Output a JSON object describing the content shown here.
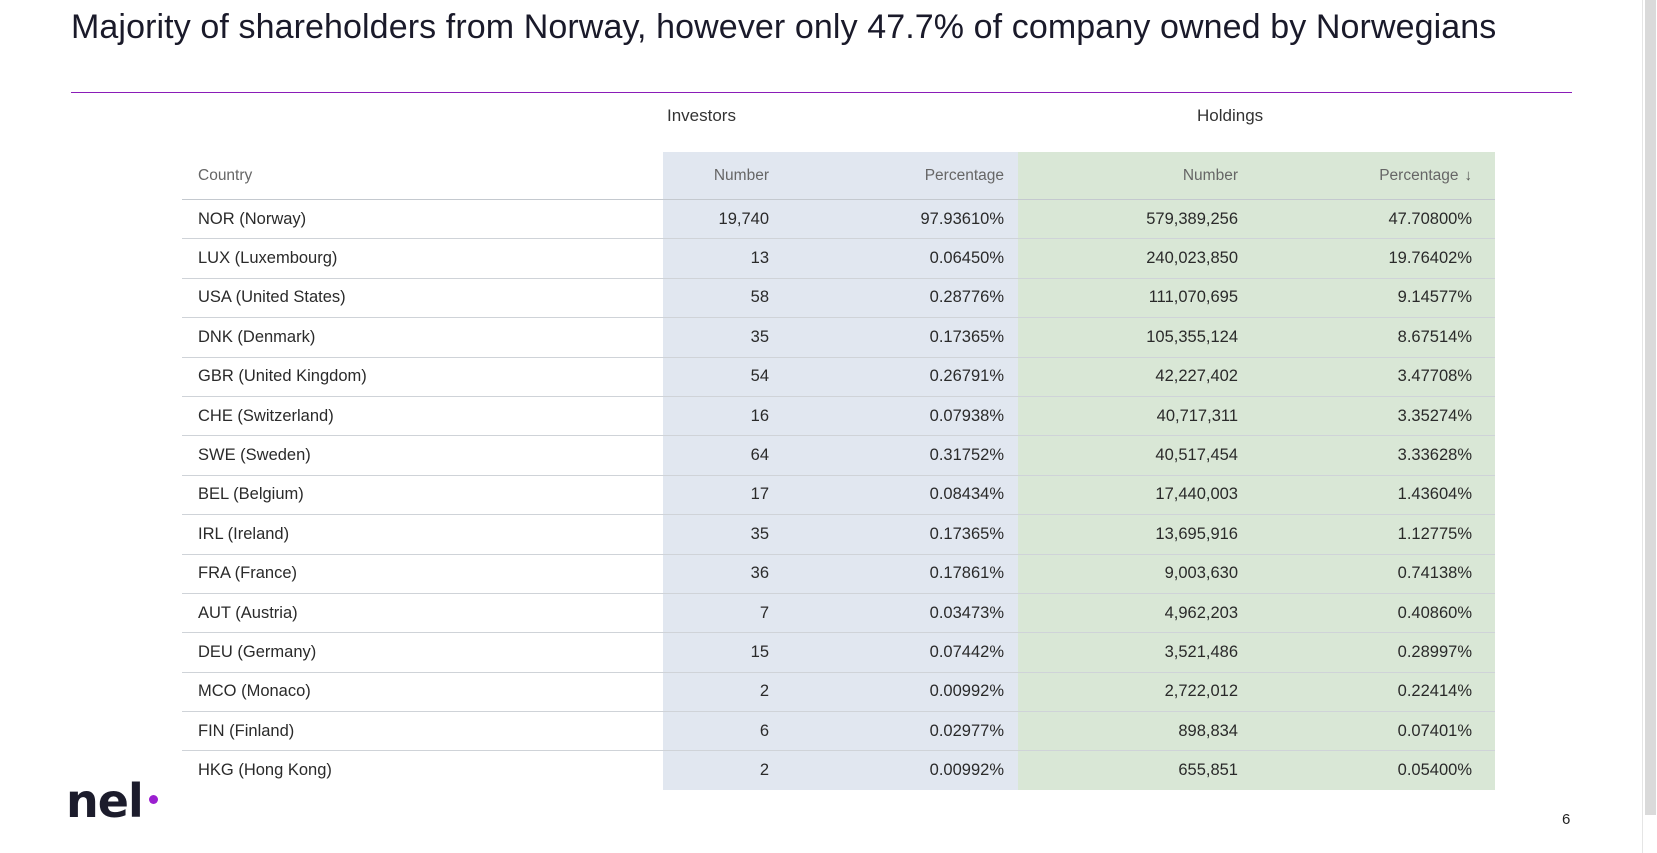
{
  "title": "Majority of shareholders from Norway, however only 47.7% of company owned by Norwegians",
  "groups": {
    "investors": "Investors",
    "holdings": "Holdings"
  },
  "headers": {
    "country": "Country",
    "investors_number": "Number",
    "investors_percentage": "Percentage",
    "holdings_number": "Number",
    "holdings_percentage": "Percentage",
    "sort_indicator": "↓"
  },
  "rows": [
    {
      "country": "NOR (Norway)",
      "inv_number": "19,740",
      "inv_pct": "97.93610%",
      "hold_number": "579,389,256",
      "hold_pct": "47.70800%"
    },
    {
      "country": "LUX (Luxembourg)",
      "inv_number": "13",
      "inv_pct": "0.06450%",
      "hold_number": "240,023,850",
      "hold_pct": "19.76402%"
    },
    {
      "country": "USA (United States)",
      "inv_number": "58",
      "inv_pct": "0.28776%",
      "hold_number": "111,070,695",
      "hold_pct": "9.14577%"
    },
    {
      "country": "DNK (Denmark)",
      "inv_number": "35",
      "inv_pct": "0.17365%",
      "hold_number": "105,355,124",
      "hold_pct": "8.67514%"
    },
    {
      "country": "GBR (United Kingdom)",
      "inv_number": "54",
      "inv_pct": "0.26791%",
      "hold_number": "42,227,402",
      "hold_pct": "3.47708%"
    },
    {
      "country": "CHE (Switzerland)",
      "inv_number": "16",
      "inv_pct": "0.07938%",
      "hold_number": "40,717,311",
      "hold_pct": "3.35274%"
    },
    {
      "country": "SWE (Sweden)",
      "inv_number": "64",
      "inv_pct": "0.31752%",
      "hold_number": "40,517,454",
      "hold_pct": "3.33628%"
    },
    {
      "country": "BEL (Belgium)",
      "inv_number": "17",
      "inv_pct": "0.08434%",
      "hold_number": "17,440,003",
      "hold_pct": "1.43604%"
    },
    {
      "country": "IRL (Ireland)",
      "inv_number": "35",
      "inv_pct": "0.17365%",
      "hold_number": "13,695,916",
      "hold_pct": "1.12775%"
    },
    {
      "country": "FRA (France)",
      "inv_number": "36",
      "inv_pct": "0.17861%",
      "hold_number": "9,003,630",
      "hold_pct": "0.74138%"
    },
    {
      "country": "AUT (Austria)",
      "inv_number": "7",
      "inv_pct": "0.03473%",
      "hold_number": "4,962,203",
      "hold_pct": "0.40860%"
    },
    {
      "country": "DEU (Germany)",
      "inv_number": "15",
      "inv_pct": "0.07442%",
      "hold_number": "3,521,486",
      "hold_pct": "0.28997%"
    },
    {
      "country": "MCO (Monaco)",
      "inv_number": "2",
      "inv_pct": "0.00992%",
      "hold_number": "2,722,012",
      "hold_pct": "0.22414%"
    },
    {
      "country": "FIN (Finland)",
      "inv_number": "6",
      "inv_pct": "0.02977%",
      "hold_number": "898,834",
      "hold_pct": "0.07401%"
    },
    {
      "country": "HKG (Hong Kong)",
      "inv_number": "2",
      "inv_pct": "0.00992%",
      "hold_number": "655,851",
      "hold_pct": "0.05400%"
    }
  ],
  "logo": {
    "text": "nel"
  },
  "page_number": "6",
  "colors": {
    "accent": "#9b1fd0",
    "rule": "#8a1db8",
    "investors_bg": "#e1e7f0",
    "holdings_bg": "#d9e7d6"
  }
}
